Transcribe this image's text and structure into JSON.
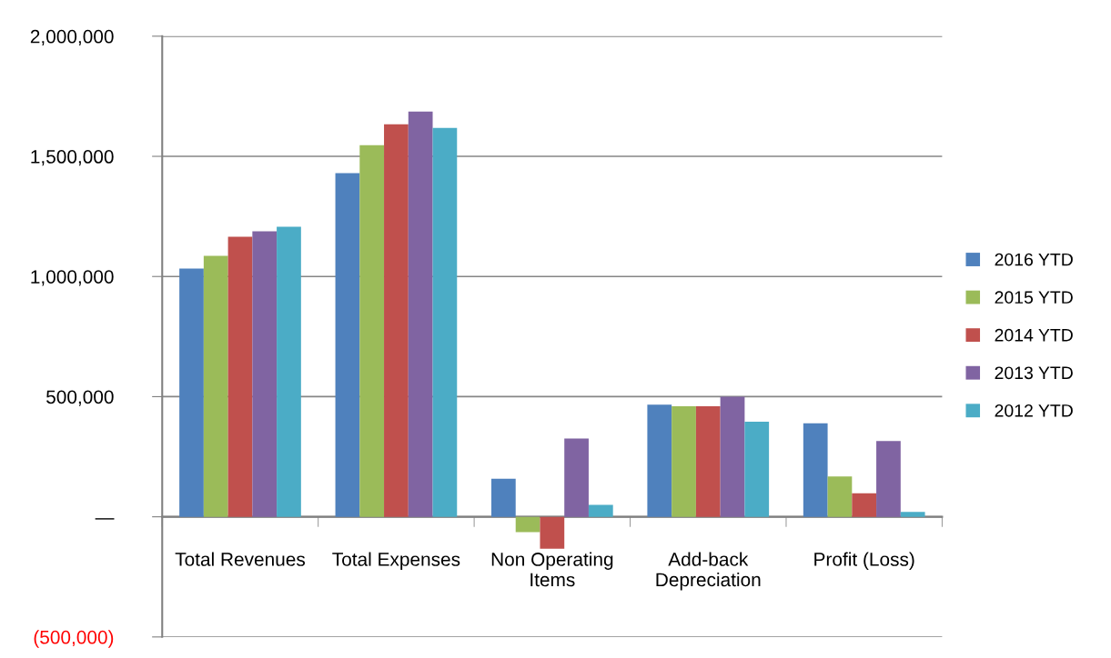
{
  "chart_data": {
    "type": "bar",
    "categories": [
      "Total Revenues",
      "Total Expenses",
      "Non Operating\nItems",
      "Add-back\nDepreciation",
      "Profit (Loss)"
    ],
    "series": [
      {
        "name": "2016 YTD",
        "color": "#4f81bd",
        "values": [
          1033000,
          1430000,
          158000,
          467000,
          389000
        ]
      },
      {
        "name": "2015 YTD",
        "color": "#9bbb59",
        "values": [
          1086000,
          1546000,
          -64000,
          460000,
          168000
        ]
      },
      {
        "name": "2014 YTD",
        "color": "#c0504d",
        "values": [
          1165000,
          1633000,
          -133000,
          460000,
          98000
        ]
      },
      {
        "name": "2013 YTD",
        "color": "#8064a2",
        "values": [
          1188000,
          1686000,
          326000,
          500000,
          315000
        ]
      },
      {
        "name": "2012 YTD",
        "color": "#4bacc6",
        "values": [
          1207000,
          1618000,
          50000,
          396000,
          20000
        ]
      }
    ],
    "ylim": [
      -500000,
      2000000
    ],
    "yticks": [
      {
        "value": -500000,
        "label": "(500,000)"
      },
      {
        "value": 0,
        "label": "—"
      },
      {
        "value": 500000,
        "label": "500,000"
      },
      {
        "value": 1000000,
        "label": "1,000,000"
      },
      {
        "value": 1500000,
        "label": "1,500,000"
      },
      {
        "value": 2000000,
        "label": "2,000,000"
      }
    ],
    "grid": "y",
    "legend": "right"
  }
}
